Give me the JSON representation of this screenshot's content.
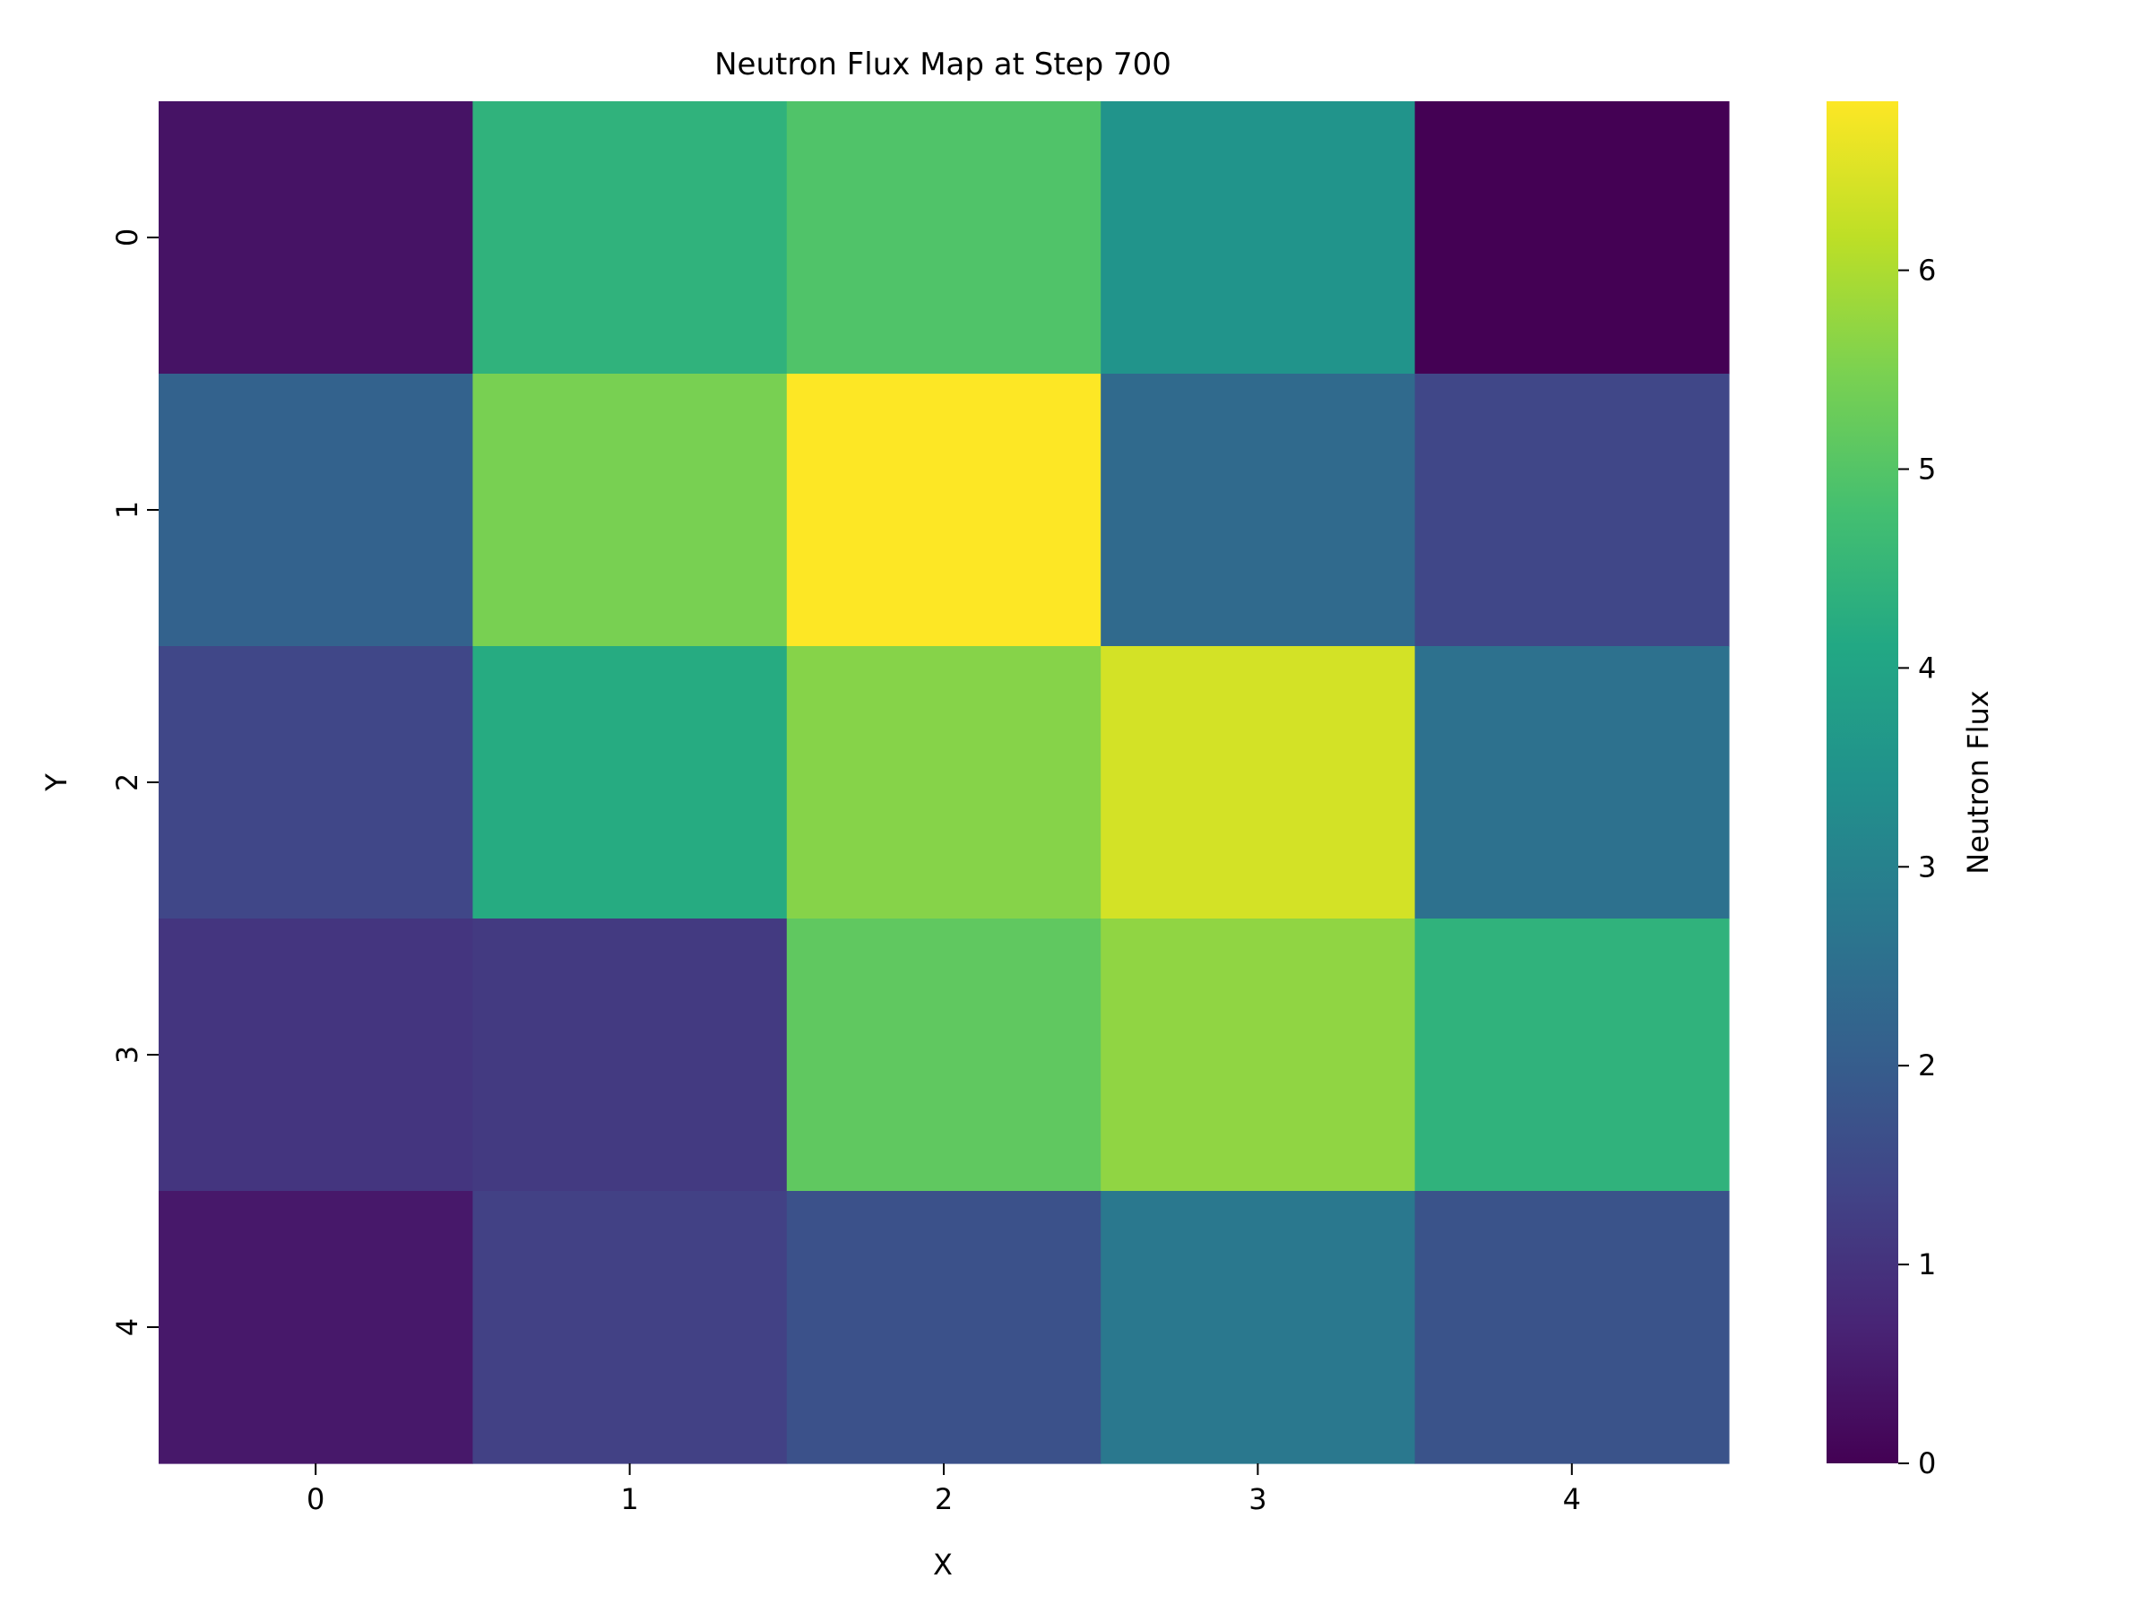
{
  "chart_data": {
    "type": "heatmap",
    "title": "Neutron Flux Map at Step 700",
    "xlabel": "X",
    "ylabel": "Y",
    "x_categories": [
      "0",
      "1",
      "2",
      "3",
      "4"
    ],
    "y_categories": [
      "0",
      "1",
      "2",
      "3",
      "4"
    ],
    "values": [
      [
        0.35,
        4.4,
        4.95,
        3.5,
        0.0
      ],
      [
        2.15,
        5.45,
        6.85,
        2.35,
        1.45
      ],
      [
        1.45,
        4.2,
        5.6,
        6.4,
        2.55
      ],
      [
        1.05,
        1.15,
        5.15,
        5.7,
        4.4
      ],
      [
        0.45,
        1.3,
        1.7,
        2.75,
        1.75
      ]
    ],
    "colorbar": {
      "label": "Neutron Flux",
      "colormap": "viridis",
      "vmin": 0,
      "vmax": 6.85,
      "ticks": [
        0,
        1,
        2,
        3,
        4,
        5,
        6
      ]
    },
    "grid": false,
    "legend": "none"
  }
}
